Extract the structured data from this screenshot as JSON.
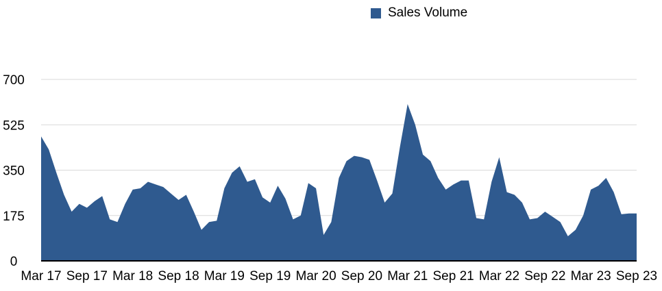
{
  "chart_data": {
    "type": "area",
    "title": "",
    "xlabel": "",
    "ylabel": "",
    "ylim": [
      0,
      700
    ],
    "y_ticks": [
      0,
      175,
      350,
      525,
      700
    ],
    "y_tick_labels": [
      "0",
      "175",
      "350",
      "525",
      "700"
    ],
    "grid": "horizontal",
    "legend_position": "top-center",
    "x_tick_labels": [
      "Mar 17",
      "Sep 17",
      "Mar 18",
      "Sep 18",
      "Mar 19",
      "Sep 19",
      "Mar 20",
      "Sep 20",
      "Mar 21",
      "Sep 21",
      "Mar 22",
      "Sep 22",
      "Mar 23",
      "Sep 23"
    ],
    "x": [
      "Mar 17",
      "Apr 17",
      "May 17",
      "Jun 17",
      "Jul 17",
      "Aug 17",
      "Sep 17",
      "Oct 17",
      "Nov 17",
      "Dec 17",
      "Jan 18",
      "Feb 18",
      "Mar 18",
      "Apr 18",
      "May 18",
      "Jun 18",
      "Jul 18",
      "Aug 18",
      "Sep 18",
      "Oct 18",
      "Nov 18",
      "Dec 18",
      "Jan 19",
      "Feb 19",
      "Mar 19",
      "Apr 19",
      "May 19",
      "Jun 19",
      "Jul 19",
      "Aug 19",
      "Sep 19",
      "Oct 19",
      "Nov 19",
      "Dec 19",
      "Jan 20",
      "Feb 20",
      "Mar 20",
      "Apr 20",
      "May 20",
      "Jun 20",
      "Jul 20",
      "Aug 20",
      "Sep 20",
      "Oct 20",
      "Nov 20",
      "Dec 20",
      "Jan 21",
      "Feb 21",
      "Mar 21",
      "Apr 21",
      "May 21",
      "Jun 21",
      "Jul 21",
      "Aug 21",
      "Sep 21",
      "Oct 21",
      "Nov 21",
      "Dec 21",
      "Jan 22",
      "Feb 22",
      "Mar 22",
      "Apr 22",
      "May 22",
      "Jun 22",
      "Jul 22",
      "Aug 22",
      "Sep 22",
      "Oct 22",
      "Nov 22",
      "Dec 22",
      "Jan 23",
      "Feb 23",
      "Mar 23",
      "Apr 23",
      "May 23",
      "Jun 23",
      "Jul 23",
      "Aug 23",
      "Sep 23"
    ],
    "series": [
      {
        "name": "Sales Volume",
        "color": "#2f5a8f",
        "values": [
          480,
          430,
          340,
          255,
          190,
          220,
          205,
          230,
          250,
          160,
          150,
          220,
          275,
          280,
          305,
          295,
          285,
          260,
          235,
          255,
          190,
          120,
          150,
          155,
          280,
          340,
          365,
          305,
          315,
          245,
          225,
          290,
          240,
          160,
          175,
          300,
          280,
          100,
          150,
          320,
          385,
          405,
          400,
          390,
          310,
          225,
          260,
          440,
          605,
          525,
          410,
          385,
          320,
          275,
          295,
          310,
          310,
          165,
          160,
          305,
          400,
          265,
          255,
          225,
          160,
          165,
          190,
          170,
          150,
          95,
          120,
          175,
          275,
          290,
          320,
          265,
          180,
          183,
          183
        ]
      }
    ]
  }
}
